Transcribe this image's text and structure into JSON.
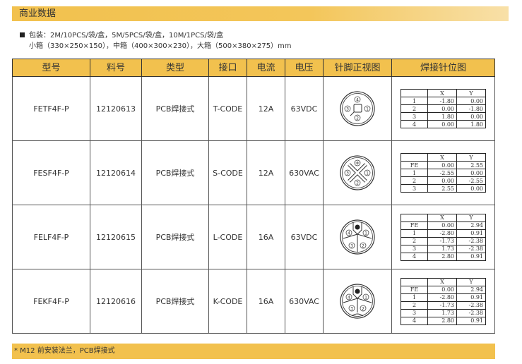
{
  "section_title": "商业数据",
  "packaging": {
    "line1": "包装：2M/10PCS/袋/盒，5M/5PCS/袋/盒，10M/1PCS/袋/盒",
    "line2": "小箱（330×250×150），中箱（400×300×230），大箱（500×380×275）mm"
  },
  "table": {
    "headers": [
      "型号",
      "料号",
      "类型",
      "接口",
      "电流",
      "电压",
      "针脚正视图",
      "焊接针位图"
    ],
    "rows": [
      {
        "model": "FETF4F-P",
        "part": "12120613",
        "type": "PCB焊接式",
        "interface": "T-CODE",
        "current": "12A",
        "voltage": "63VDC",
        "diagram": "t-code-pin-icon",
        "pins": {
          "head": [
            "",
            "X",
            "Y"
          ],
          "rows": [
            [
              "1",
              "-1.80",
              "0.00"
            ],
            [
              "2",
              "0.00",
              "-1.80"
            ],
            [
              "3",
              "1.80",
              "0.00"
            ],
            [
              "4",
              "0.00",
              "1.80"
            ]
          ]
        }
      },
      {
        "model": "FESF4F-P",
        "part": "12120614",
        "type": "PCB焊接式",
        "interface": "S-CODE",
        "current": "12A",
        "voltage": "630VAC",
        "diagram": "s-code-pin-icon",
        "pins": {
          "head": [
            "",
            "X",
            "Y"
          ],
          "rows": [
            [
              "FE",
              "0.00",
              "2.55"
            ],
            [
              "1",
              "-2.55",
              "0.00"
            ],
            [
              "2",
              "0.00",
              "-2.55"
            ],
            [
              "3",
              "2.55",
              "0.00"
            ]
          ]
        }
      },
      {
        "model": "FELF4F-P",
        "part": "12120615",
        "type": "PCB焊接式",
        "interface": "L-CODE",
        "current": "16A",
        "voltage": "63VDC",
        "diagram": "l-code-pin-icon",
        "pins": {
          "head": [
            "",
            "X",
            "Y"
          ],
          "rows": [
            [
              "FE",
              "0.00",
              "2.94"
            ],
            [
              "1",
              "-2.80",
              "0.91"
            ],
            [
              "2",
              "-1.73",
              "-2.38"
            ],
            [
              "3",
              "1.73",
              "-2.38"
            ],
            [
              "4",
              "2.80",
              "0.91"
            ]
          ]
        }
      },
      {
        "model": "FEKF4F-P",
        "part": "12120616",
        "type": "PCB焊接式",
        "interface": "K-CODE",
        "current": "16A",
        "voltage": "630VAC",
        "diagram": "k-code-pin-icon",
        "pins": {
          "head": [
            "",
            "X",
            "Y"
          ],
          "rows": [
            [
              "FE",
              "0.00",
              "2.94"
            ],
            [
              "1",
              "-2.80",
              "0.91"
            ],
            [
              "2",
              "-1.73",
              "-2.38"
            ],
            [
              "3",
              "1.73",
              "-2.38"
            ],
            [
              "4",
              "2.80",
              "0.91"
            ]
          ]
        }
      }
    ]
  },
  "footer_note": "* M12 前安装法兰，PCB焊接式",
  "colors": {
    "accent": "#f2c14e"
  }
}
